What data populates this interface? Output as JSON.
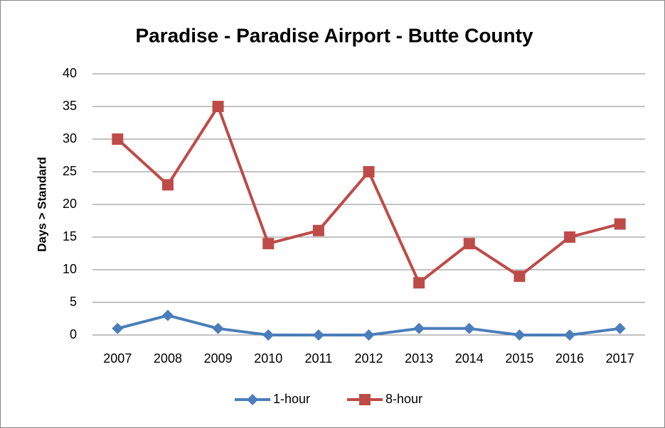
{
  "chart_data": {
    "type": "line",
    "title": "Paradise - Paradise Airport - Butte County",
    "ylabel": "Days > Standard",
    "categories": [
      "2007",
      "2008",
      "2009",
      "2010",
      "2011",
      "2012",
      "2013",
      "2014",
      "2015",
      "2016",
      "2017"
    ],
    "series": [
      {
        "name": "1-hour",
        "color": "#4a7ebb",
        "marker": "diamond",
        "values": [
          1,
          3,
          1,
          0,
          0,
          0,
          1,
          1,
          0,
          0,
          1
        ]
      },
      {
        "name": "8-hour",
        "color": "#be4b48",
        "marker": "square",
        "values": [
          30,
          23,
          35,
          14,
          16,
          25,
          8,
          14,
          9,
          15,
          17
        ]
      }
    ],
    "ylim": [
      0,
      40
    ],
    "yticks": [
      0,
      5,
      10,
      15,
      20,
      25,
      30,
      35,
      40
    ],
    "grid": true,
    "legend": "bottom"
  }
}
